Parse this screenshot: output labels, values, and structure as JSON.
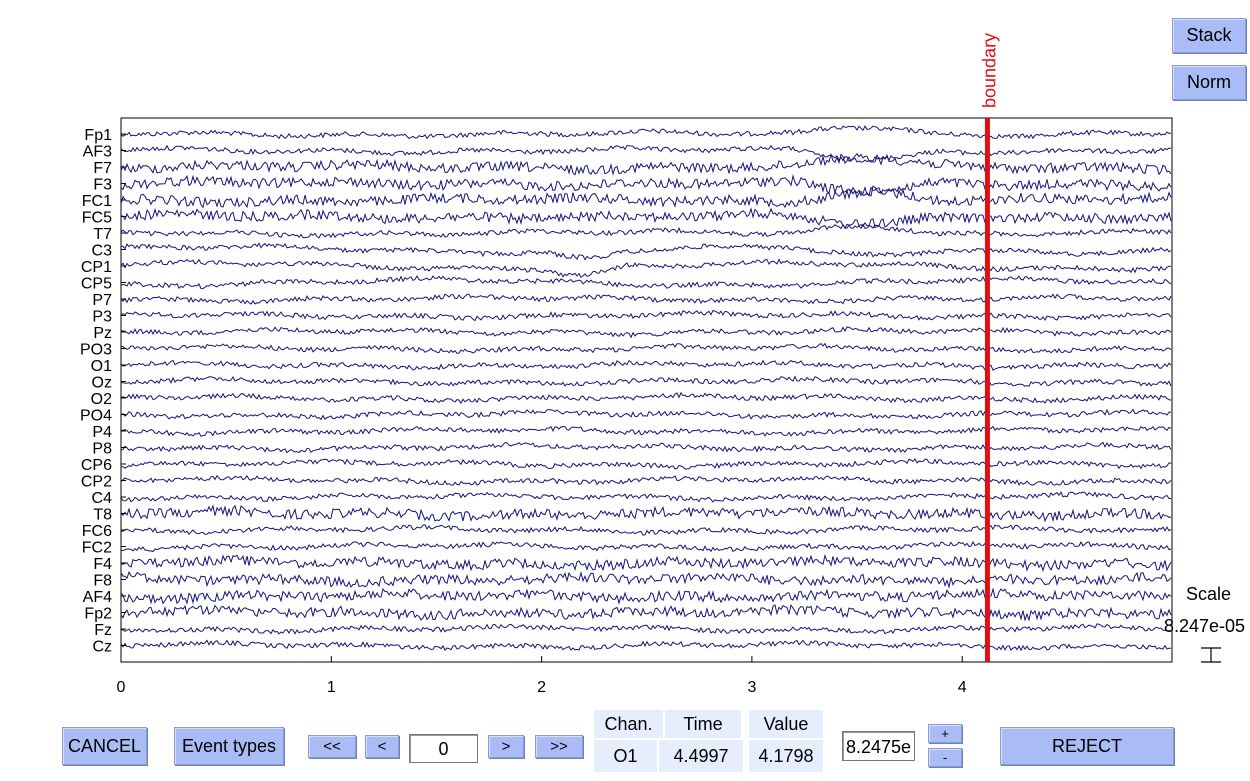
{
  "side_buttons": {
    "stack": "Stack",
    "norm": "Norm"
  },
  "event": {
    "label": "boundary",
    "time": 4.12,
    "color": "#e01010"
  },
  "channels": [
    "Fp1",
    "AF3",
    "F7",
    "F3",
    "FC1",
    "FC5",
    "T7",
    "C3",
    "CP1",
    "CP5",
    "P7",
    "P3",
    "Pz",
    "PO3",
    "O1",
    "Oz",
    "O2",
    "PO4",
    "P4",
    "P8",
    "CP6",
    "CP2",
    "C4",
    "T8",
    "FC6",
    "FC2",
    "F4",
    "F8",
    "AF4",
    "Fp2",
    "Fz",
    "Cz"
  ],
  "x_ticks": [
    "0",
    "1",
    "2",
    "3",
    "4"
  ],
  "trace_color": "#14147a",
  "scale": {
    "label": "Scale",
    "value": "8.247e-05"
  },
  "toolbar": {
    "cancel": "CANCEL",
    "event_types": "Event types",
    "first": "<<",
    "prev": "<",
    "position": "0",
    "next": ">",
    "last": ">>",
    "scale_input": "8.2475e",
    "plus": "+",
    "minus": "-",
    "reject": "REJECT"
  },
  "readout": {
    "chan_header": "Chan.",
    "time_header": "Time",
    "value_header": "Value",
    "chan": "O1",
    "time": "4.4997",
    "value": "4.1798"
  }
}
